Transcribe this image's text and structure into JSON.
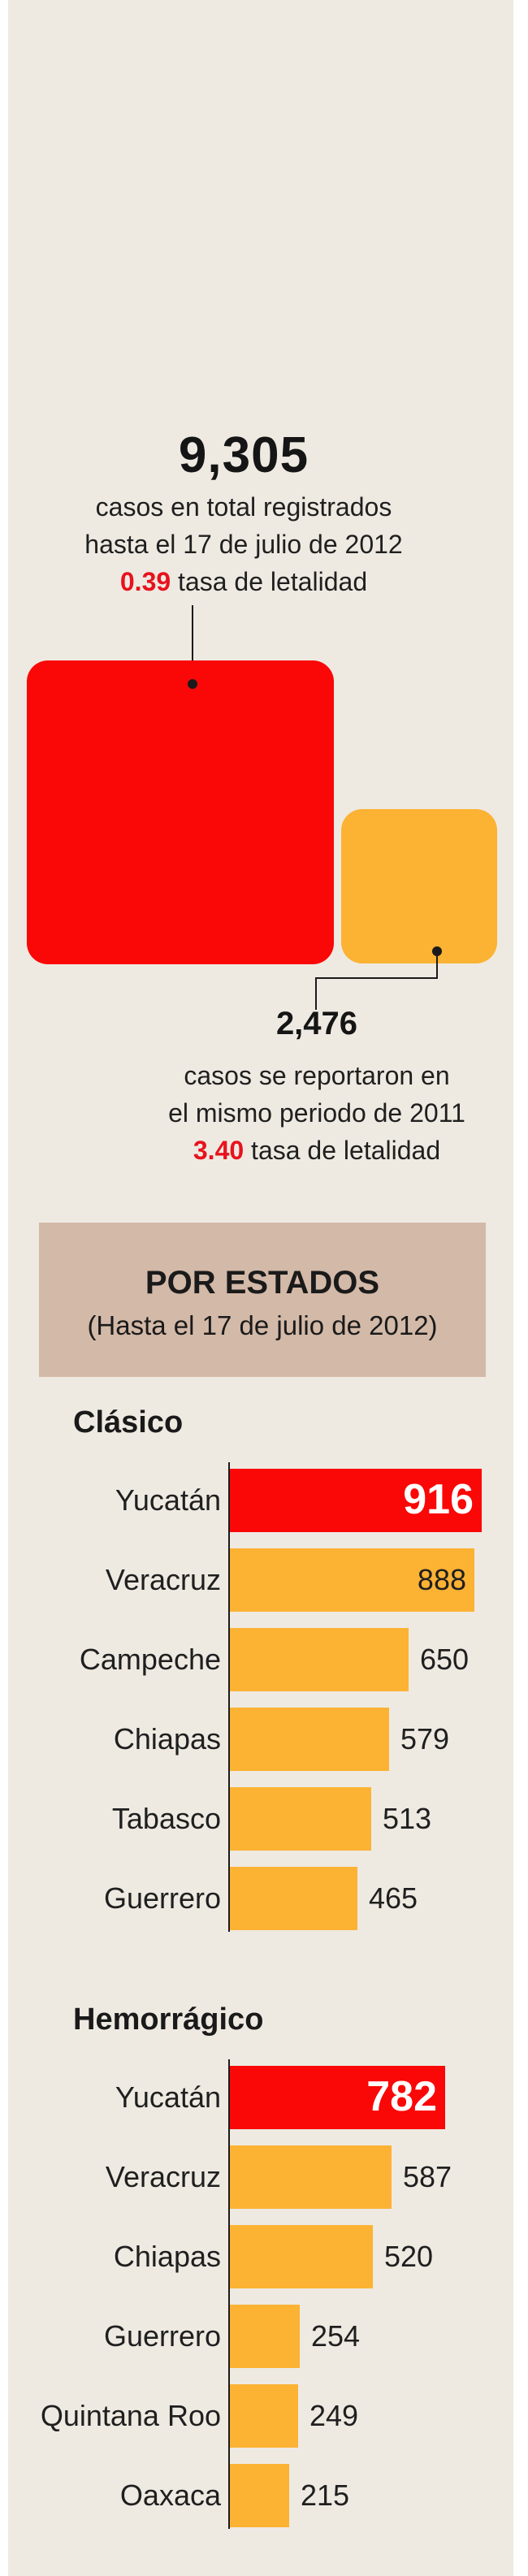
{
  "totals": {
    "y2012": {
      "value": "9,305",
      "line1": "casos en total registrados",
      "line2": "hasta el 17 de julio de 2012",
      "rate": "0.39",
      "rate_label": "tasa de letalidad"
    },
    "y2011": {
      "value": "2,476",
      "line1": "casos se reportaron en",
      "line2": "el mismo periodo de 2011",
      "rate": "3.40",
      "rate_label": "tasa de letalidad"
    }
  },
  "estados": {
    "title": "POR ESTADOS",
    "subtitle": "(Hasta el 17 de julio de 2012)"
  },
  "colors": {
    "highlight": "#fa0707",
    "bar": "#fcb233",
    "panel": "#eeeae2",
    "banner": "#d3b9a8"
  },
  "chart_data": [
    {
      "type": "bar",
      "title": "Clásico",
      "categories": [
        "Yucatán",
        "Veracruz",
        "Campeche",
        "Chiapas",
        "Tabasco",
        "Guerrero"
      ],
      "values": [
        916,
        888,
        650,
        579,
        513,
        465
      ],
      "highlight_index": 0
    },
    {
      "type": "bar",
      "title": "Hemorrágico",
      "categories": [
        "Yucatán",
        "Veracruz",
        "Chiapas",
        "Guerrero",
        "Quintana Roo",
        "Oaxaca"
      ],
      "values": [
        782,
        587,
        520,
        254,
        249,
        215
      ],
      "highlight_index": 0
    }
  ]
}
